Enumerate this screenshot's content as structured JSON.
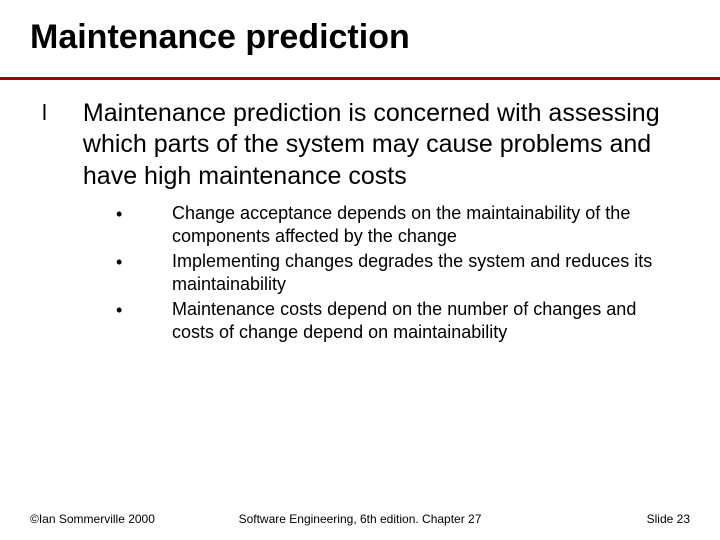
{
  "title": "Maintenance prediction",
  "title_fontsize": 34,
  "underline_color": "#a00000",
  "background_color": "#ffffff",
  "text_color": "#000000",
  "main": {
    "bullet": "l",
    "text": "Maintenance prediction is concerned with assessing which parts of the system may cause problems and have high maintenance costs",
    "fontsize": 25
  },
  "sub_bullet": "•",
  "sub_fontsize": 18,
  "subs": [
    {
      "text": "Change acceptance depends on the maintainability of the components affected by the change"
    },
    {
      "text": "Implementing changes degrades the system and reduces its maintainability"
    },
    {
      "text": "Maintenance costs depend on the number of changes and costs of change depend on maintainability"
    }
  ],
  "footer": {
    "left": "©Ian Sommerville 2000",
    "center": "Software Engineering, 6th edition. Chapter 27",
    "right": "Slide 23",
    "fontsize": 12
  }
}
